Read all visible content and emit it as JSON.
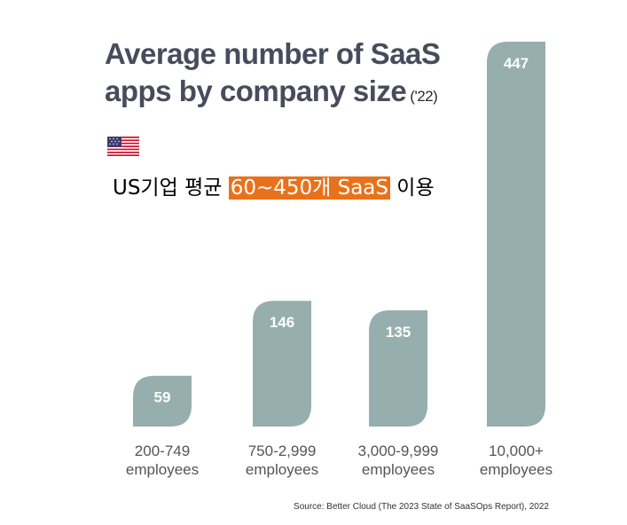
{
  "title": {
    "line1": "Average number of SaaS",
    "line2": "apps by company size",
    "year": "('22)"
  },
  "flag_icon": "us-flag",
  "subtitle": {
    "before": "US기업 평균 ",
    "highlight": "60~450개 SaaS",
    "after": " 이용"
  },
  "colors": {
    "bar": "#96aeae",
    "title": "#474c5c",
    "highlight": "#e8721c",
    "axis_label": "#555555"
  },
  "chart_data": {
    "type": "bar",
    "categories": [
      "200-749\nemployees",
      "750-2,999\nemployees",
      "3,000-9,999\nemployees",
      "10,000+\nemployees"
    ],
    "values": [
      59,
      146,
      135,
      447
    ],
    "ylim": [
      0,
      447
    ],
    "grid": false,
    "data_labels": [
      "59",
      "146",
      "135",
      "447"
    ]
  },
  "source": "Source: Better Cloud (The 2023 State of SaaSOps Report), 2022"
}
